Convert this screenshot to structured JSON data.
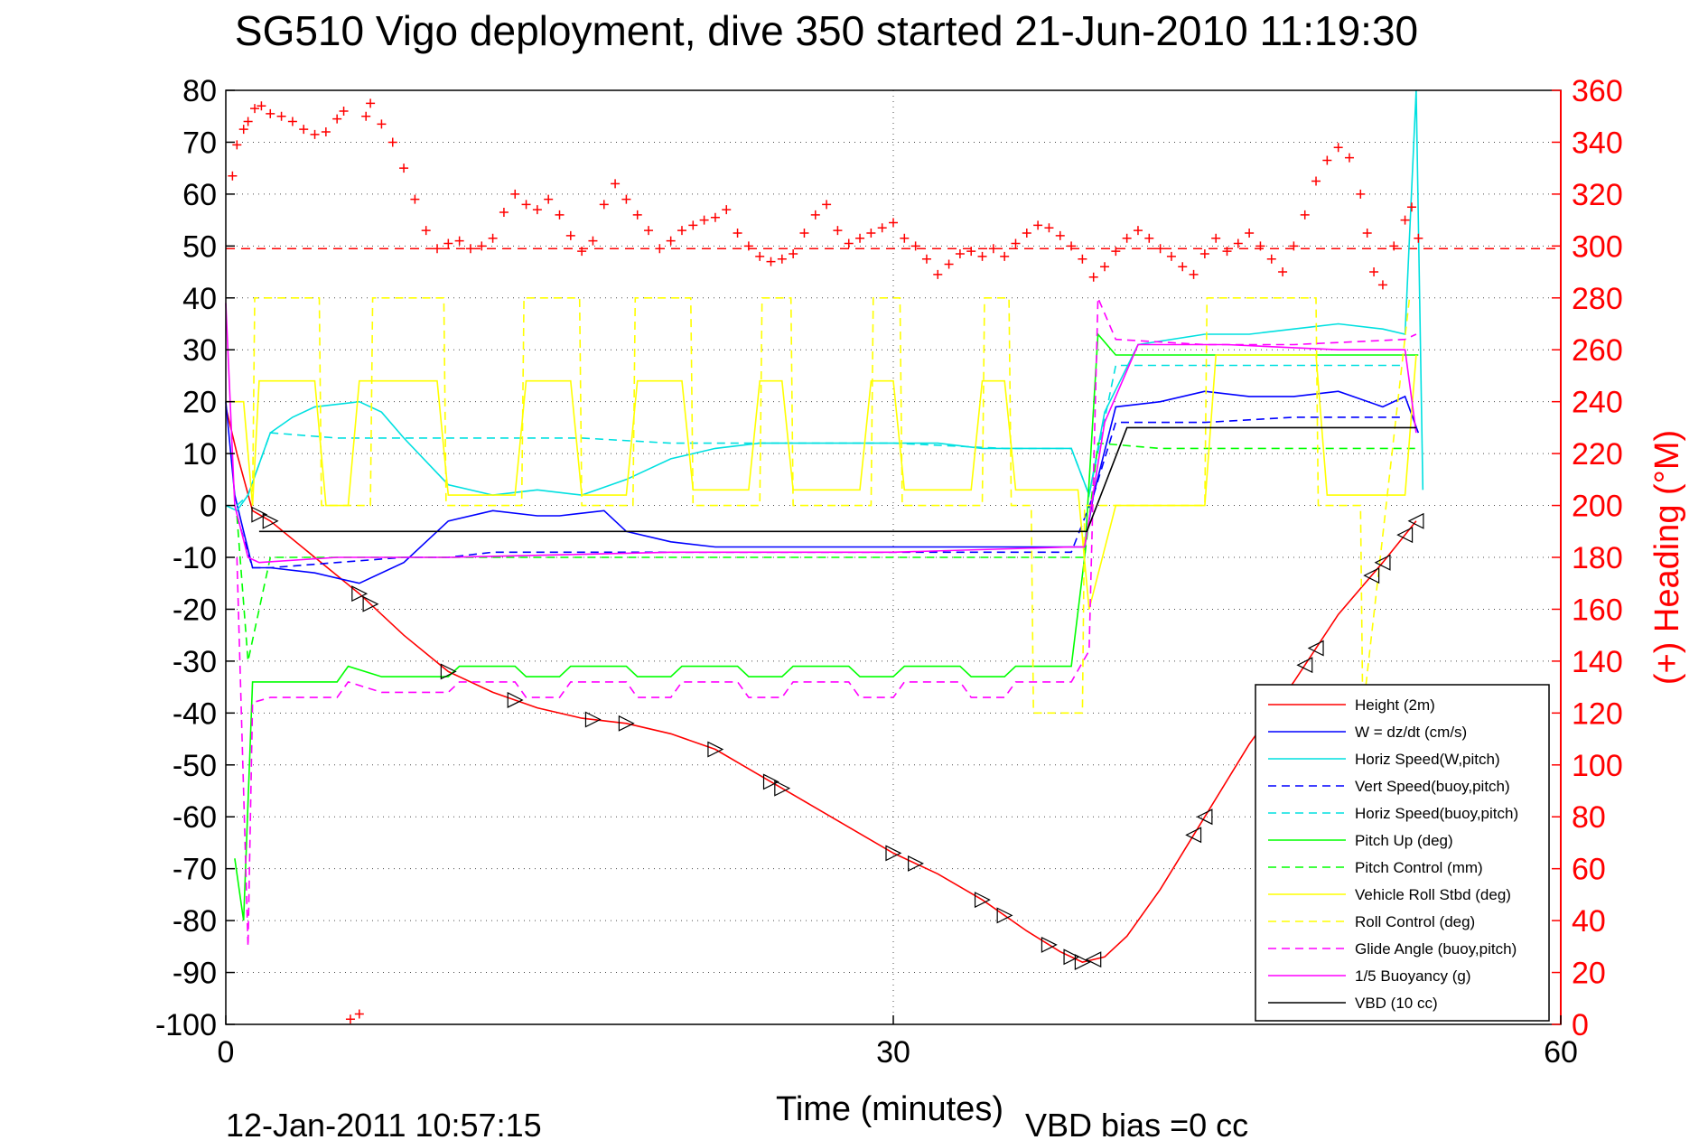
{
  "chart_data": {
    "type": "line",
    "title": "SG510 Vigo deployment, dive 350 started 21-Jun-2010 11:19:30",
    "xlabel": "Time (minutes)",
    "ylabel_right": "(+) Heading (°M)",
    "footer_left": "12-Jan-2011 10:57:15",
    "footer_right": "VBD bias =0 cc",
    "xlim": [
      0,
      60
    ],
    "ylim": [
      -100,
      80
    ],
    "ylim_right": [
      0,
      360
    ],
    "x_ticks": [
      "0",
      "30",
      "60"
    ],
    "y_ticks": [
      "80",
      "70",
      "60",
      "50",
      "40",
      "30",
      "20",
      "10",
      "0",
      "-10",
      "-20",
      "-30",
      "-40",
      "-50",
      "-60",
      "-70",
      "-80",
      "-90",
      "-100"
    ],
    "y2_ticks": [
      "360",
      "340",
      "320",
      "300",
      "280",
      "260",
      "240",
      "220",
      "200",
      "180",
      "160",
      "140",
      "120",
      "100",
      "80",
      "60",
      "40",
      "20",
      "0"
    ],
    "grid": true,
    "legend_position": "bottom-right",
    "heading_reference": 299,
    "series": [
      {
        "name": "Height (2m)",
        "color": "#ff0000",
        "style": "solid",
        "x": [
          0,
          0.5,
          1.2,
          2,
          4,
          6,
          8,
          10,
          12,
          14,
          16,
          18,
          20,
          22,
          24,
          26,
          28,
          30,
          32,
          34,
          36,
          37.5,
          38.5,
          39.5,
          40.5,
          42,
          44,
          46,
          48,
          50,
          52,
          53.5
        ],
        "y": [
          19,
          10,
          -1,
          -3,
          -10,
          -17,
          -25,
          -32,
          -36,
          -39,
          -41,
          -42,
          -44,
          -47,
          -52,
          -57,
          -62,
          -67,
          -71,
          -76,
          -82,
          -86,
          -88,
          -87,
          -83,
          -74,
          -60,
          -46,
          -34,
          -21,
          -11,
          -3
        ]
      },
      {
        "name": "W = dz/dt (cm/s)",
        "color": "#0000ff",
        "style": "solid",
        "x": [
          0,
          0.4,
          0.8,
          1.2,
          2,
          4,
          6,
          8,
          10,
          12,
          14,
          15,
          17,
          18,
          20,
          22,
          25,
          28,
          30,
          33,
          36,
          38,
          38.6,
          39,
          40,
          42,
          44,
          46,
          48,
          50,
          52,
          53,
          53.6
        ],
        "y": [
          20,
          2,
          -5,
          -12,
          -12,
          -13,
          -15,
          -11,
          -3,
          -1,
          -2,
          -2,
          -1,
          -5,
          -7,
          -8,
          -8,
          -8,
          -8,
          -8,
          -8,
          -8,
          -8,
          2,
          19,
          20,
          22,
          21,
          21,
          22,
          19,
          21,
          14
        ]
      },
      {
        "name": "Horiz Speed(W,pitch)",
        "color": "#00e0e0",
        "style": "solid",
        "x": [
          0,
          0.5,
          1,
          2,
          3,
          4,
          6,
          7,
          8,
          10,
          12,
          14,
          16,
          18,
          20,
          22,
          24,
          26,
          28,
          30,
          32,
          34,
          36,
          38,
          38.8,
          39.5,
          41,
          44,
          46,
          48,
          50,
          52,
          53,
          53.5,
          53.8
        ],
        "y": [
          0,
          -1,
          2,
          14,
          17,
          19,
          20,
          18,
          13,
          4,
          2,
          3,
          2,
          5,
          9,
          11,
          12,
          12,
          12,
          12,
          12,
          11,
          11,
          11,
          2,
          18,
          31,
          33,
          33,
          34,
          35,
          34,
          33,
          80,
          3
        ]
      },
      {
        "name": "Vert Speed(buoy,pitch)",
        "color": "#0000ff",
        "style": "dashed",
        "x": [
          0.5,
          1.2,
          2,
          5,
          8,
          10,
          12,
          14,
          16,
          20,
          25,
          30,
          35,
          38,
          39,
          40,
          44,
          48,
          53
        ],
        "y": [
          -2,
          -12,
          -12,
          -11,
          -10,
          -10,
          -9,
          -9,
          -9,
          -9,
          -9,
          -9,
          -9,
          -9,
          2,
          16,
          16,
          17,
          17
        ]
      },
      {
        "name": "Horiz Speed(buoy,pitch)",
        "color": "#00e0e0",
        "style": "dashed",
        "x": [
          0.5,
          1,
          2,
          5,
          8,
          10,
          12,
          14,
          16,
          20,
          25,
          30,
          35,
          38,
          38.8,
          40,
          44,
          48,
          53
        ],
        "y": [
          0,
          2,
          14,
          13,
          13,
          13,
          13,
          13,
          13,
          12,
          12,
          12,
          11,
          11,
          2,
          27,
          27,
          27,
          27
        ]
      },
      {
        "name": "Pitch Up (deg)",
        "color": "#00ff00",
        "style": "solid",
        "x": [
          0.4,
          0.8,
          1.2,
          2,
          5,
          5.5,
          7,
          10,
          10.5,
          13,
          13.5,
          15,
          15.5,
          18,
          18.5,
          20,
          20.5,
          23,
          23.5,
          25,
          25.5,
          28,
          28.5,
          30,
          30.5,
          33,
          33.5,
          35,
          35.5,
          38,
          38.6,
          39.2,
          40,
          44,
          48,
          53,
          53.6
        ],
        "y": [
          -68,
          -80,
          -34,
          -34,
          -34,
          -31,
          -33,
          -33,
          -31,
          -31,
          -33,
          -33,
          -31,
          -31,
          -33,
          -33,
          -31,
          -31,
          -33,
          -33,
          -31,
          -31,
          -33,
          -33,
          -31,
          -31,
          -33,
          -33,
          -31,
          -31,
          -10,
          33,
          29,
          29,
          29,
          29,
          29
        ]
      },
      {
        "name": "Pitch Control (mm)",
        "color": "#00ff00",
        "style": "dashed",
        "x": [
          0.5,
          1,
          2,
          5,
          10,
          20,
          30,
          38,
          38.6,
          39.2,
          42,
          50,
          53.5
        ],
        "y": [
          -2,
          -30,
          -10,
          -10,
          -10,
          -10,
          -10,
          -10,
          -10,
          12,
          11,
          11,
          11
        ]
      },
      {
        "name": "Vehicle Roll Stbd (deg)",
        "color": "#ffff00",
        "style": "solid",
        "x": [
          0,
          0.8,
          1.2,
          1.5,
          4,
          4.5,
          5.5,
          6,
          9.5,
          10,
          13,
          13.5,
          15.5,
          16,
          18,
          18.5,
          20.5,
          21,
          23.5,
          24,
          25,
          25.5,
          28.5,
          29,
          30,
          30.5,
          33.5,
          34,
          35,
          35.5,
          38.3,
          38.8,
          40,
          44,
          44.5,
          49,
          49.5,
          53,
          53.5
        ],
        "y": [
          20,
          20,
          0,
          24,
          24,
          0,
          0,
          24,
          24,
          2,
          2,
          24,
          24,
          2,
          2,
          24,
          24,
          3,
          3,
          24,
          24,
          3,
          3,
          24,
          24,
          3,
          3,
          24,
          24,
          3,
          3,
          -20,
          0,
          0,
          29,
          29,
          2,
          2,
          29
        ]
      },
      {
        "name": "Roll Control (deg)",
        "color": "#ffff00",
        "style": "dashed",
        "x": [
          1.2,
          1.3,
          4.2,
          4.3,
          6.5,
          6.6,
          9.8,
          9.9,
          13.3,
          13.4,
          15.9,
          16,
          18.3,
          18.4,
          20.9,
          21,
          24,
          24.1,
          25.4,
          25.5,
          29,
          29.1,
          30.3,
          30.4,
          34,
          34.1,
          35.2,
          35.3,
          36.2,
          36.3,
          38.5,
          38.6,
          39,
          40,
          44,
          44.1,
          49,
          49.1,
          51,
          51.1,
          53.2
        ],
        "y": [
          0,
          40,
          40,
          0,
          0,
          40,
          40,
          0,
          0,
          40,
          40,
          0,
          0,
          40,
          40,
          0,
          0,
          40,
          40,
          0,
          0,
          40,
          40,
          0,
          0,
          40,
          40,
          0,
          0,
          -40,
          -40,
          0,
          0,
          0,
          0,
          40,
          40,
          0,
          0,
          -40,
          40
        ]
      },
      {
        "name": "Glide Angle (buoy,pitch)",
        "color": "#ff00ff",
        "style": "dashed",
        "x": [
          0.5,
          1,
          1.2,
          2,
          5,
          5.5,
          7,
          10,
          10.5,
          13,
          13.5,
          15,
          15.5,
          18,
          18.5,
          20,
          20.5,
          23,
          23.5,
          25,
          25.5,
          28,
          28.5,
          30,
          30.5,
          33,
          33.5,
          35,
          35.5,
          38,
          38.8,
          39.2,
          40,
          44,
          48,
          53,
          53.5
        ],
        "y": [
          -10,
          -85,
          -38,
          -37,
          -37,
          -34,
          -36,
          -36,
          -34,
          -34,
          -37,
          -37,
          -34,
          -34,
          -37,
          -37,
          -34,
          -34,
          -37,
          -37,
          -34,
          -34,
          -37,
          -37,
          -34,
          -34,
          -37,
          -37,
          -34,
          -34,
          -28,
          40,
          32,
          31,
          31,
          32,
          33
        ]
      },
      {
        "name": "1/5 Buoyancy (g)",
        "color": "#ff00ff",
        "style": "solid",
        "x": [
          0,
          0.4,
          1,
          1.5,
          5,
          10,
          20,
          30,
          38,
          38.6,
          39.5,
          41,
          45,
          50,
          53,
          53.5
        ],
        "y": [
          39,
          0,
          -10,
          -11,
          -10,
          -10,
          -9,
          -9,
          -8,
          -8,
          16,
          31,
          31,
          30,
          30,
          14
        ]
      },
      {
        "name": "VBD (10 cc)",
        "color": "#000000",
        "style": "solid",
        "x": [
          1.5,
          2,
          38.5,
          38.7,
          40.5,
          53.5
        ],
        "y": [
          -5,
          -5,
          -5,
          -5,
          15,
          15
        ]
      }
    ],
    "heading_series": {
      "name": "(+) Heading (°M)",
      "color": "#ff0000",
      "marker": "+",
      "x": [
        0.3,
        0.5,
        0.8,
        1,
        1.3,
        1.6,
        2,
        2.5,
        3,
        3.5,
        4,
        4.5,
        5,
        5.3,
        5.6,
        6,
        6.3,
        6.5,
        7,
        7.5,
        8,
        8.5,
        9,
        9.5,
        10,
        10.5,
        11,
        11.5,
        12,
        12.5,
        13,
        13.5,
        14,
        14.5,
        15,
        15.5,
        16,
        16.5,
        17,
        17.5,
        18,
        18.5,
        19,
        19.5,
        20,
        20.5,
        21,
        21.5,
        22,
        22.5,
        23,
        23.5,
        24,
        24.5,
        25,
        25.5,
        26,
        26.5,
        27,
        27.5,
        28,
        28.5,
        29,
        29.5,
        30,
        30.5,
        31,
        31.5,
        32,
        32.5,
        33,
        33.5,
        34,
        34.5,
        35,
        35.5,
        36,
        36.5,
        37,
        37.5,
        38,
        38.5,
        39,
        39.5,
        40,
        40.5,
        41,
        41.5,
        42,
        42.5,
        43,
        43.5,
        44,
        44.5,
        45,
        45.5,
        46,
        46.5,
        47,
        47.5,
        48,
        48.5,
        49,
        49.5,
        50,
        50.5,
        51,
        51.3,
        51.6,
        52,
        52.5,
        53,
        53.3,
        53.6
      ],
      "y": [
        327,
        339,
        345,
        348,
        353,
        354,
        351,
        350,
        348,
        345,
        343,
        344,
        349,
        352,
        2,
        4,
        350,
        355,
        347,
        340,
        330,
        318,
        306,
        299,
        301,
        302,
        299,
        300,
        303,
        313,
        320,
        316,
        314,
        318,
        312,
        304,
        298,
        302,
        316,
        324,
        318,
        312,
        306,
        299,
        302,
        306,
        308,
        310,
        311,
        314,
        305,
        300,
        296,
        294,
        295,
        297,
        305,
        312,
        316,
        306,
        301,
        303,
        305,
        307,
        309,
        303,
        300,
        295,
        289,
        293,
        297,
        298,
        296,
        299,
        296,
        301,
        305,
        308,
        307,
        304,
        300,
        295,
        288,
        292,
        298,
        303,
        306,
        303,
        299,
        296,
        292,
        289,
        297,
        303,
        298,
        301,
        305,
        300,
        295,
        290,
        300,
        312,
        325,
        333,
        338,
        334,
        320,
        305,
        290,
        285,
        300,
        310,
        315,
        303
      ]
    },
    "legend": [
      "Height (2m)",
      "W = dz/dt (cm/s)",
      "Horiz Speed(W,pitch)",
      "Vert Speed(buoy,pitch)",
      "Horiz Speed(buoy,pitch)",
      "Pitch Up (deg)",
      "Pitch Control (mm)",
      "Vehicle Roll Stbd (deg)",
      "Roll Control (deg)",
      "Glide Angle (buoy,pitch)",
      "1/5 Buoyancy (g)",
      "VBD (10 cc)"
    ],
    "markers_descent": [
      1.5,
      2,
      6,
      6.5,
      10,
      13,
      16.5,
      18,
      22,
      24.5,
      25,
      30,
      31,
      34,
      35,
      37,
      38,
      38.5
    ],
    "markers_ascent": [
      39,
      43.5,
      44,
      48.5,
      49,
      51.5,
      52,
      53,
      53.5
    ]
  }
}
